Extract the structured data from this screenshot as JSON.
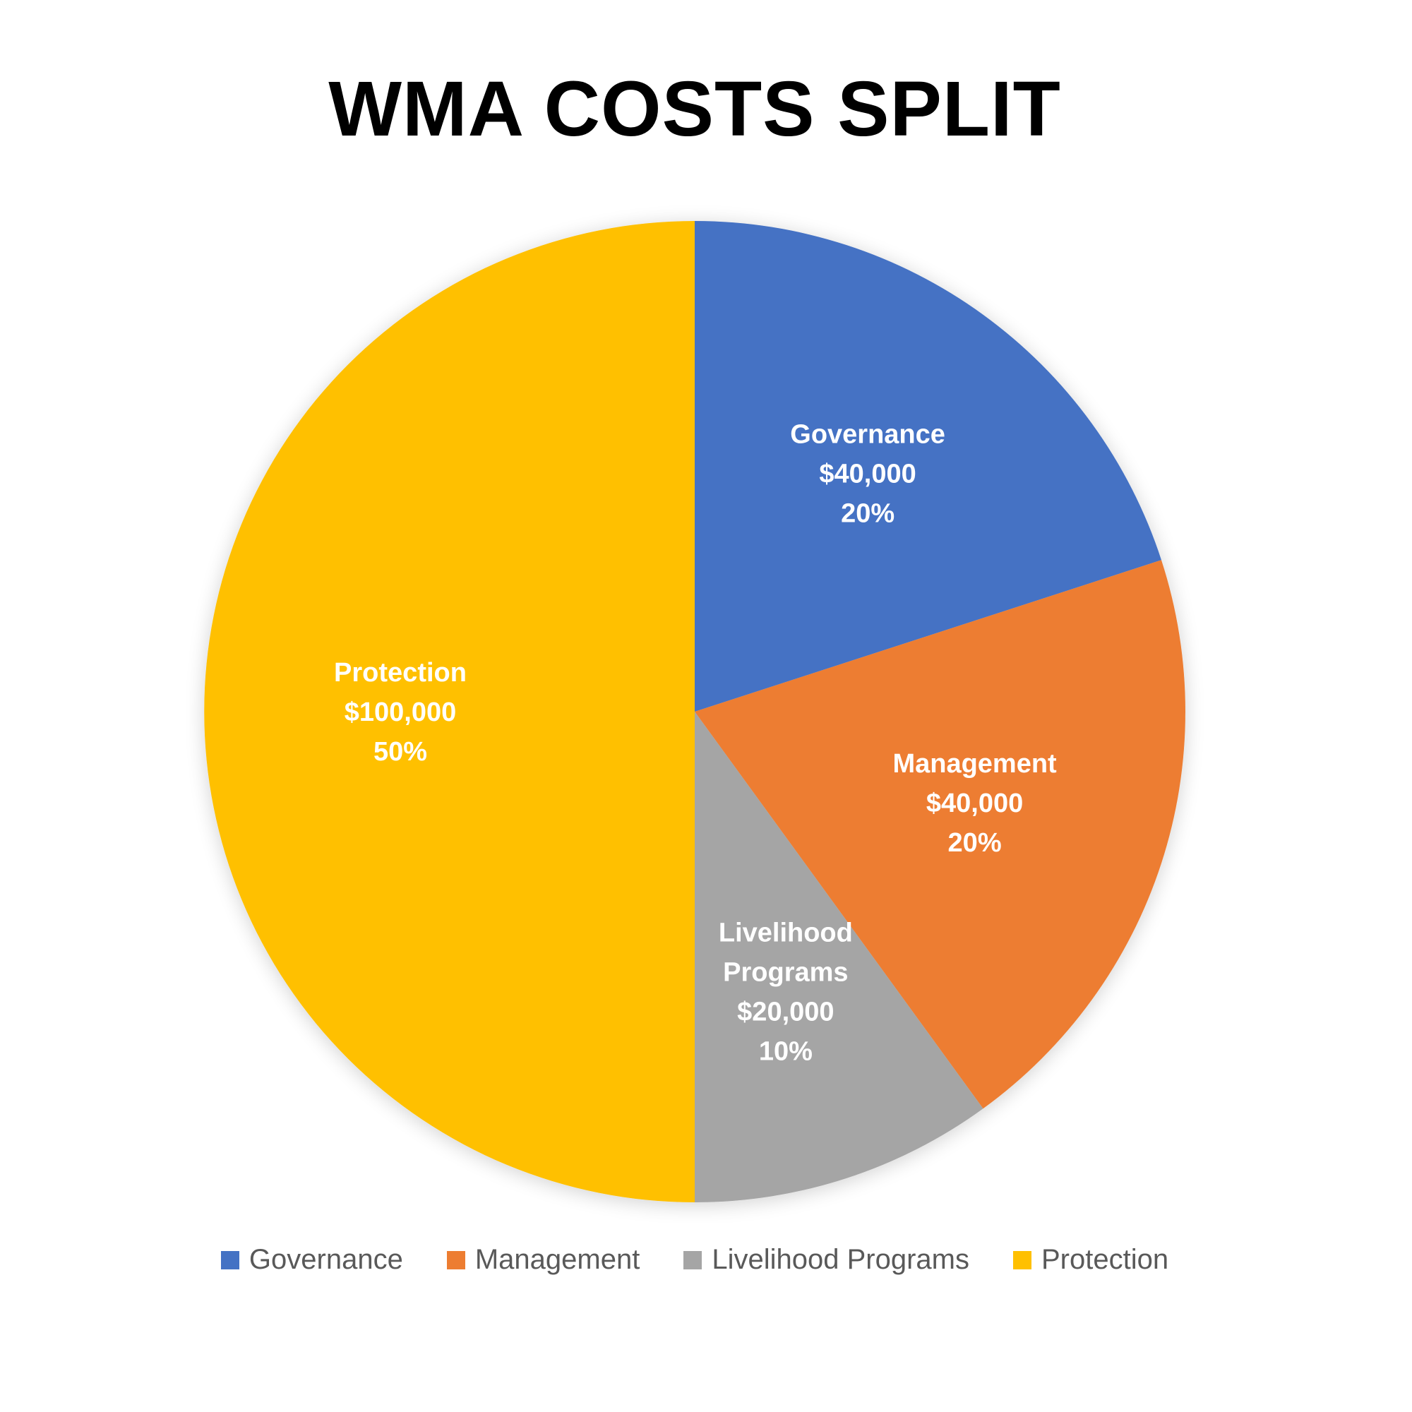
{
  "chart_data": {
    "type": "pie",
    "title": "WMA COSTS SPLIT",
    "legend_position": "bottom",
    "start_angle": "12 o'clock, clockwise",
    "slices": [
      {
        "name": "Governance",
        "label_lines": [
          "Governance"
        ],
        "value": 40000,
        "value_label": "$40,000",
        "percent": 20,
        "percent_label": "20%",
        "color": "#4472C4"
      },
      {
        "name": "Management",
        "label_lines": [
          "Management"
        ],
        "value": 40000,
        "value_label": "$40,000",
        "percent": 20,
        "percent_label": "20%",
        "color": "#ED7D31"
      },
      {
        "name": "Livelihood Programs",
        "label_lines": [
          "Livelihood",
          "Programs"
        ],
        "value": 20000,
        "value_label": "$20,000",
        "percent": 10,
        "percent_label": "10%",
        "color": "#A5A5A5"
      },
      {
        "name": "Protection",
        "label_lines": [
          "Protection"
        ],
        "value": 100000,
        "value_label": "$100,000",
        "percent": 50,
        "percent_label": "50%",
        "color": "#FFC000"
      }
    ]
  }
}
